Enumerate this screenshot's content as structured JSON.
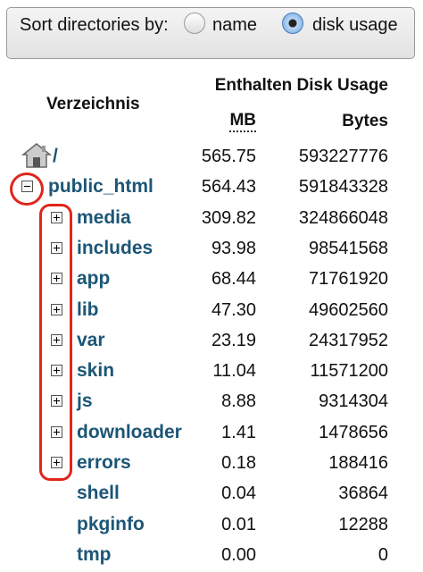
{
  "sort": {
    "label": "Sort directories by:",
    "options": [
      {
        "label": "name",
        "selected": false
      },
      {
        "label": "disk usage",
        "selected": true
      }
    ]
  },
  "table": {
    "headers": {
      "directory": "Verzeichnis",
      "usage": "Enthalten Disk Usage",
      "mb": "MB",
      "bytes": "Bytes"
    },
    "rows": [
      {
        "name": "/",
        "icon": "home",
        "level": 0,
        "mb": "565.75",
        "bytes": "593227776"
      },
      {
        "name": "public_html",
        "icon": "minus",
        "level": 0,
        "mb": "564.43",
        "bytes": "591843328"
      },
      {
        "name": "media",
        "icon": "plus",
        "level": 1,
        "mb": "309.82",
        "bytes": "324866048"
      },
      {
        "name": "includes",
        "icon": "plus",
        "level": 1,
        "mb": "93.98",
        "bytes": "98541568"
      },
      {
        "name": "app",
        "icon": "plus",
        "level": 1,
        "mb": "68.44",
        "bytes": "71761920"
      },
      {
        "name": "lib",
        "icon": "plus",
        "level": 1,
        "mb": "47.30",
        "bytes": "49602560"
      },
      {
        "name": "var",
        "icon": "plus",
        "level": 1,
        "mb": "23.19",
        "bytes": "24317952"
      },
      {
        "name": "skin",
        "icon": "plus",
        "level": 1,
        "mb": "11.04",
        "bytes": "11571200"
      },
      {
        "name": "js",
        "icon": "plus",
        "level": 1,
        "mb": "8.88",
        "bytes": "9314304"
      },
      {
        "name": "downloader",
        "icon": "plus",
        "level": 1,
        "mb": "1.41",
        "bytes": "1478656"
      },
      {
        "name": "errors",
        "icon": "plus",
        "level": 1,
        "mb": "0.18",
        "bytes": "188416"
      },
      {
        "name": "shell",
        "icon": null,
        "level": 1,
        "mb": "0.04",
        "bytes": "36864"
      },
      {
        "name": "pkginfo",
        "icon": null,
        "level": 1,
        "mb": "0.01",
        "bytes": "12288"
      },
      {
        "name": "tmp",
        "icon": null,
        "level": 1,
        "mb": "0.00",
        "bytes": "0"
      }
    ]
  }
}
